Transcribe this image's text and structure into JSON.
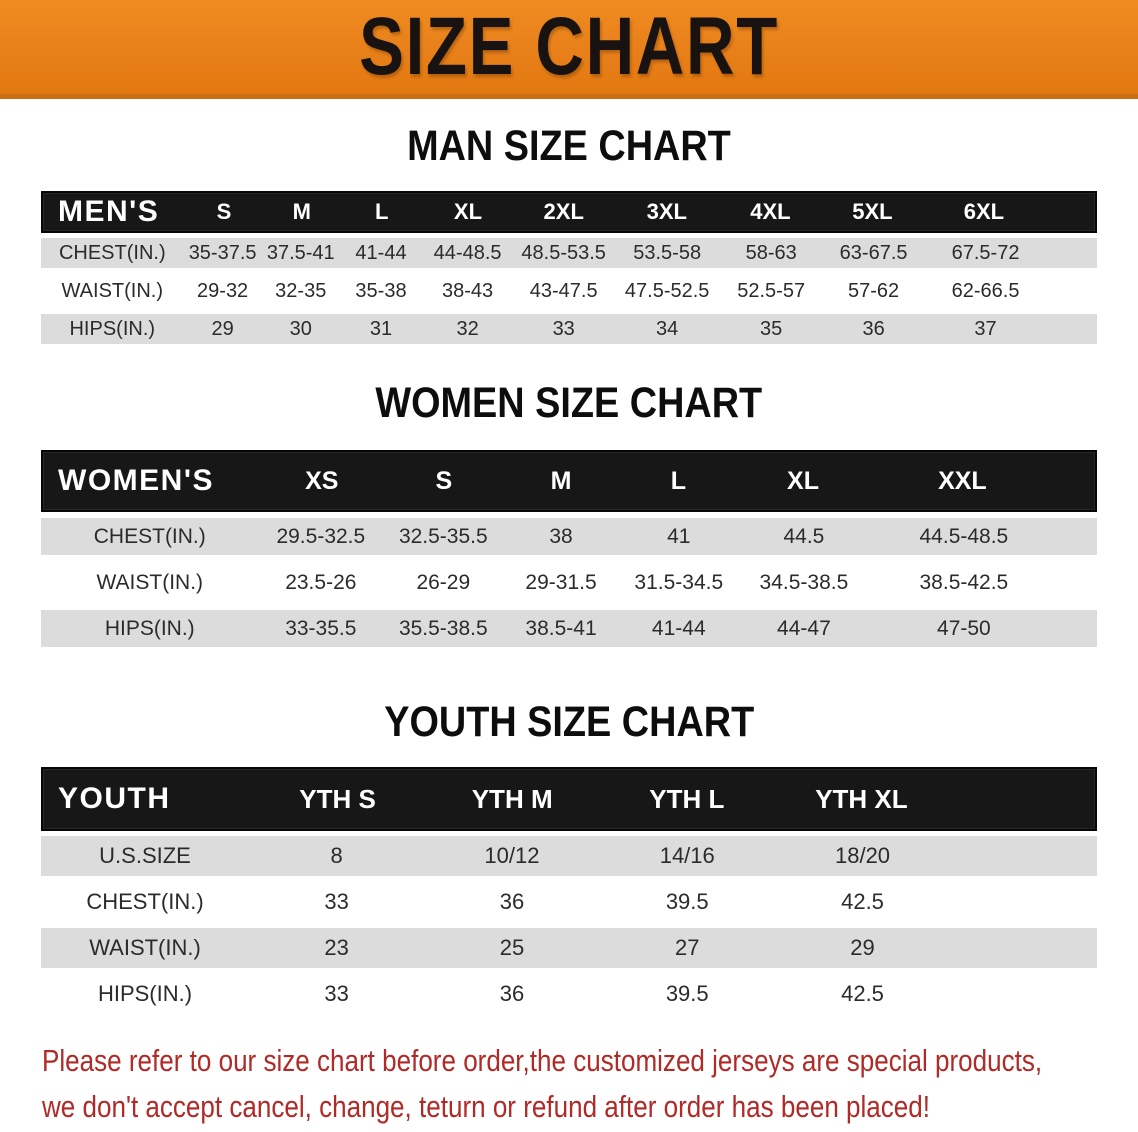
{
  "banner": {
    "title": "SIZE CHART"
  },
  "colors": {
    "banner_orange": "#E8801A",
    "banner_edge": "#C96E12",
    "header_black": "#171717",
    "row_gray": "#DCDCDC",
    "note_red": "#B02A28",
    "text_dark": "#2B2B2B"
  },
  "men": {
    "heading": "MAN SIZE CHART",
    "header_label": "MEN'S",
    "sizes": [
      "S",
      "M",
      "L",
      "XL",
      "2XL",
      "3XL",
      "4XL",
      "5XL",
      "6XL"
    ],
    "rows": [
      {
        "label": "CHEST(IN.)",
        "values": [
          "35-37.5",
          "37.5-41",
          "41-44",
          "44-48.5",
          "48.5-53.5",
          "53.5-58",
          "58-63",
          "63-67.5",
          "67.5-72"
        ]
      },
      {
        "label": "WAIST(IN.)",
        "values": [
          "29-32",
          "32-35",
          "35-38",
          "38-43",
          "43-47.5",
          "47.5-52.5",
          "52.5-57",
          "57-62",
          "62-66.5"
        ]
      },
      {
        "label": "HIPS(IN.)",
        "values": [
          "29",
          "30",
          "31",
          "32",
          "33",
          "34",
          "35",
          "36",
          "37"
        ]
      }
    ]
  },
  "women": {
    "heading": "WOMEN SIZE CHART",
    "header_label": "WOMEN'S",
    "sizes": [
      "XS",
      "S",
      "M",
      "L",
      "XL",
      "XXL"
    ],
    "rows": [
      {
        "label": "CHEST(IN.)",
        "values": [
          "29.5-32.5",
          "32.5-35.5",
          "38",
          "41",
          "44.5",
          "44.5-48.5"
        ]
      },
      {
        "label": "WAIST(IN.)",
        "values": [
          "23.5-26",
          "26-29",
          "29-31.5",
          "31.5-34.5",
          "34.5-38.5",
          "38.5-42.5"
        ]
      },
      {
        "label": "HIPS(IN.)",
        "values": [
          "33-35.5",
          "35.5-38.5",
          "38.5-41",
          "41-44",
          "44-47",
          "47-50"
        ]
      }
    ]
  },
  "youth": {
    "heading": "YOUTH SIZE CHART",
    "header_label": "YOUTH",
    "sizes": [
      "YTH S",
      "YTH M",
      "YTH L",
      "YTH XL"
    ],
    "rows": [
      {
        "label": "U.S.SIZE",
        "values": [
          "8",
          "10/12",
          "14/16",
          "18/20"
        ]
      },
      {
        "label": "CHEST(IN.)",
        "values": [
          "33",
          "36",
          "39.5",
          "42.5"
        ]
      },
      {
        "label": "WAIST(IN.)",
        "values": [
          "23",
          "25",
          "27",
          "29"
        ]
      },
      {
        "label": "HIPS(IN.)",
        "values": [
          "33",
          "36",
          "39.5",
          "42.5"
        ]
      }
    ]
  },
  "footer": {
    "line1": "Please refer to our size chart before order,the customized jerseys are special products,",
    "line2": "we don't accept cancel, change, teturn or refund after order has been placed!"
  }
}
